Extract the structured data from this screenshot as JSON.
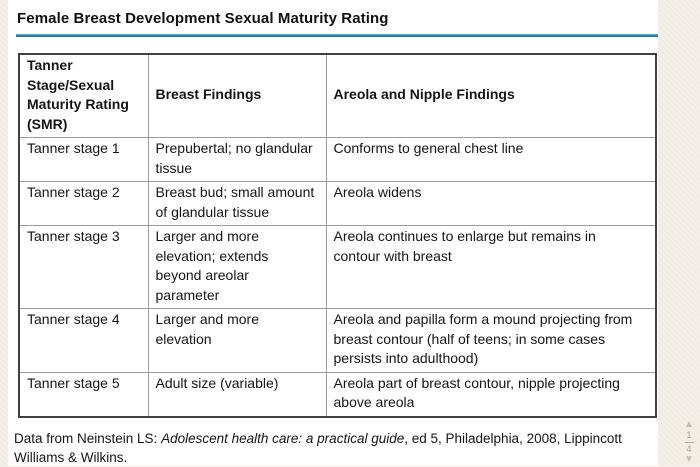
{
  "page": {
    "title": "Female Breast Development Sexual Maturity Rating"
  },
  "table": {
    "headers": {
      "stage": "Tanner\nStage/Sexual\nMaturity Rating\n(SMR)",
      "breast": "Breast Findings",
      "areola": "Areola and Nipple Findings"
    },
    "rows": [
      {
        "stage": "Tanner stage 1",
        "breast": "Prepubertal; no glandular\ntissue",
        "areola": "Conforms to general chest line"
      },
      {
        "stage": "Tanner stage 2",
        "breast": "Breast bud; small amount\nof glandular tissue",
        "areola": "Areola widens"
      },
      {
        "stage": "Tanner stage 3",
        "breast": "Larger and more\nelevation; extends\nbeyond areolar\nparameter",
        "areola": "Areola continues to enlarge but remains in\ncontour with breast"
      },
      {
        "stage": "Tanner stage 4",
        "breast": "Larger and more\nelevation",
        "areola": "Areola and papilla form a mound projecting from\nbreast contour (half of teens; in some cases\npersists into adulthood)"
      },
      {
        "stage": "Tanner stage 5",
        "breast": "Adult size (variable)",
        "areola": "Areola part of breast contour, nipple projecting\nabove areola"
      }
    ]
  },
  "footer": {
    "prefix": "Data from Neinstein LS: ",
    "source_title": "Adolescent health care: a practical guide",
    "suffix": ", ed 5, Philadelphia, 2008, Lippincott\nWilliams & Wilkins."
  },
  "pager": {
    "up_icon": "▲",
    "down_icon": "▼",
    "current_page": "1",
    "total_pages": "4"
  },
  "colors": {
    "accent_rule": "#2d8fb4",
    "page_margin_bg": "#f4f0e8",
    "content_bg": "#ffffff",
    "table_outer_border": "#414141",
    "table_inner_border": "#9b9b9b",
    "pager_color": "#a89f90"
  }
}
